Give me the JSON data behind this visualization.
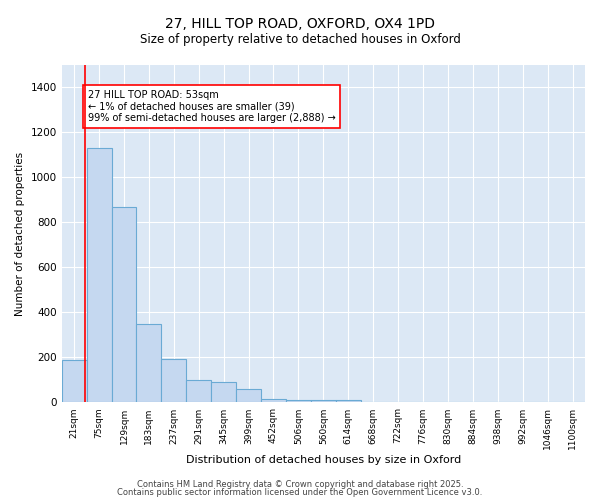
{
  "title1": "27, HILL TOP ROAD, OXFORD, OX4 1PD",
  "title2": "Size of property relative to detached houses in Oxford",
  "xlabel": "Distribution of detached houses by size in Oxford",
  "ylabel": "Number of detached properties",
  "bar_color": "#c5d8f0",
  "bar_edge_color": "#6aaad4",
  "background_color": "#dce8f5",
  "categories": [
    "21sqm",
    "75sqm",
    "129sqm",
    "183sqm",
    "237sqm",
    "291sqm",
    "345sqm",
    "399sqm",
    "452sqm",
    "506sqm",
    "560sqm",
    "614sqm",
    "668sqm",
    "722sqm",
    "776sqm",
    "830sqm",
    "884sqm",
    "938sqm",
    "992sqm",
    "1046sqm",
    "1100sqm"
  ],
  "values": [
    190,
    1130,
    870,
    350,
    195,
    100,
    90,
    60,
    15,
    10,
    10,
    10,
    0,
    0,
    0,
    0,
    0,
    0,
    0,
    0,
    0
  ],
  "annotation_text": "27 HILL TOP ROAD: 53sqm\n← 1% of detached houses are smaller (39)\n99% of semi-detached houses are larger (2,888) →",
  "vline_x": 0.45,
  "ylim": [
    0,
    1500
  ],
  "yticks": [
    0,
    200,
    400,
    600,
    800,
    1000,
    1200,
    1400
  ],
  "footer1": "Contains HM Land Registry data © Crown copyright and database right 2025.",
  "footer2": "Contains public sector information licensed under the Open Government Licence v3.0."
}
